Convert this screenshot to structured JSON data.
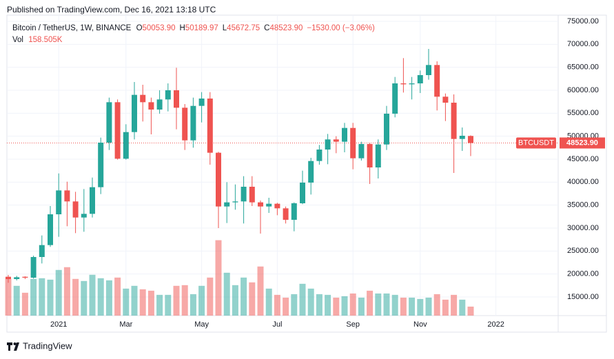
{
  "header": {
    "published": "Published on TradingView.com, Dec 16, 2021 13:18 UTC",
    "brand": "TradingView"
  },
  "chart_data": {
    "type": "candlestick",
    "symbol": "Bitcoin / TetherUS, 1W, BINANCE",
    "ohlc_legend": [
      {
        "key": "O",
        "value": "50053.90"
      },
      {
        "key": "H",
        "value": "50189.97"
      },
      {
        "key": "L",
        "value": "45672.75"
      },
      {
        "key": "C",
        "value": "48523.90"
      }
    ],
    "change_label": "−1530.00 (−3.06%)",
    "volume_title": "Vol",
    "volume_label": "158.505K",
    "symbol_tag": "BTCUSDT",
    "last_price_label": "48523.90",
    "open": [
      19400,
      18900,
      19400,
      19200,
      23700,
      26300,
      33000,
      38200,
      35800,
      32300,
      33100,
      38900,
      48600,
      57400,
      45100,
      50900,
      59000,
      57400,
      55800,
      58000,
      60000,
      56200,
      49100,
      56600,
      58200,
      46400,
      34700,
      35600,
      35800,
      39000,
      35600,
      34700,
      35300,
      34300,
      31800,
      35400,
      39900,
      44600,
      47100,
      49300,
      48800,
      51800,
      45200,
      48300,
      43200,
      48200,
      54900,
      61500,
      61300,
      61500,
      63300,
      65500,
      58600,
      57300,
      49400,
      50053.9
    ],
    "high": [
      19800,
      19600,
      19500,
      24000,
      28400,
      34800,
      41900,
      40100,
      37900,
      38500,
      41000,
      49700,
      58400,
      58000,
      52600,
      61800,
      61200,
      58400,
      60000,
      61500,
      64900,
      57000,
      58400,
      59600,
      59600,
      46600,
      40000,
      39500,
      41300,
      41300,
      36000,
      36600,
      35500,
      34700,
      35600,
      42500,
      45300,
      48100,
      50500,
      50000,
      52900,
      52900,
      48800,
      48500,
      49300,
      56600,
      62900,
      67000,
      62900,
      64300,
      69000,
      66300,
      59300,
      59100,
      51900,
      50189.97
    ],
    "low": [
      18100,
      18600,
      18900,
      19000,
      22300,
      25900,
      28100,
      30400,
      28900,
      29200,
      32300,
      37400,
      47000,
      44900,
      44900,
      49300,
      53200,
      50400,
      54900,
      55400,
      51500,
      47000,
      47500,
      53000,
      43800,
      30000,
      31100,
      34000,
      31000,
      34800,
      28800,
      33300,
      32800,
      31000,
      29300,
      35200,
      37300,
      43800,
      43900,
      46300,
      46500,
      42800,
      44700,
      39600,
      40800,
      47000,
      54100,
      59500,
      58000,
      59400,
      62300,
      55600,
      53300,
      42000,
      46800,
      45672.75
    ],
    "close": [
      18900,
      19300,
      19200,
      23700,
      26300,
      33000,
      38200,
      35800,
      32300,
      33100,
      38900,
      48600,
      57400,
      45100,
      50900,
      59000,
      57400,
      55800,
      58000,
      60000,
      56200,
      49100,
      56600,
      58200,
      46400,
      34700,
      35600,
      35800,
      39000,
      35600,
      34700,
      35300,
      34300,
      31800,
      35400,
      39900,
      44600,
      47100,
      49300,
      48800,
      51800,
      45200,
      48300,
      43200,
      48200,
      54900,
      61500,
      61300,
      61500,
      63300,
      65500,
      58600,
      57300,
      49400,
      50100,
      48523.9
    ],
    "volume": [
      647000,
      525000,
      403000,
      647000,
      659000,
      634000,
      805000,
      854000,
      647000,
      610000,
      720000,
      659000,
      622000,
      671000,
      476000,
      525000,
      464000,
      439000,
      366000,
      366000,
      525000,
      537000,
      378000,
      525000,
      671000,
      1330000,
      756000,
      537000,
      671000,
      586000,
      866000,
      476000,
      366000,
      317000,
      378000,
      561000,
      476000,
      378000,
      366000,
      317000,
      342000,
      390000,
      317000,
      439000,
      390000,
      390000,
      366000,
      317000,
      317000,
      293000,
      317000,
      378000,
      281000,
      366000,
      281000,
      158505
    ],
    "xlim": [
      -0.164,
      65.41
    ],
    "xticks": [
      {
        "value": 6,
        "label": "2021"
      },
      {
        "value": 14,
        "label": "Mar"
      },
      {
        "value": 23,
        "label": "May"
      },
      {
        "value": 32,
        "label": "Jul"
      },
      {
        "value": 41,
        "label": "Sep"
      },
      {
        "value": 49,
        "label": "Nov"
      },
      {
        "value": 58,
        "label": "2022"
      }
    ],
    "ylim": [
      10950,
      76350
    ],
    "yticks": [
      {
        "value": 15000,
        "label": "15000.00"
      },
      {
        "value": 20000,
        "label": "20000.00"
      },
      {
        "value": 25000,
        "label": "25000.00"
      },
      {
        "value": 30000,
        "label": "30000.00"
      },
      {
        "value": 35000,
        "label": "35000.00"
      },
      {
        "value": 40000,
        "label": "40000.00"
      },
      {
        "value": 45000,
        "label": "45000.00"
      },
      {
        "value": 50000,
        "label": "50000.00"
      },
      {
        "value": 55000,
        "label": "55000.00"
      },
      {
        "value": 60000,
        "label": "60000.00"
      },
      {
        "value": 65000,
        "label": "65000.00"
      },
      {
        "value": 70000,
        "label": "70000.00"
      },
      {
        "value": 75000,
        "label": "75000.00"
      }
    ],
    "vlim": [
      0,
      5300000
    ],
    "up_color": "#26a69a",
    "down_color": "#ef5350",
    "grid": true
  }
}
